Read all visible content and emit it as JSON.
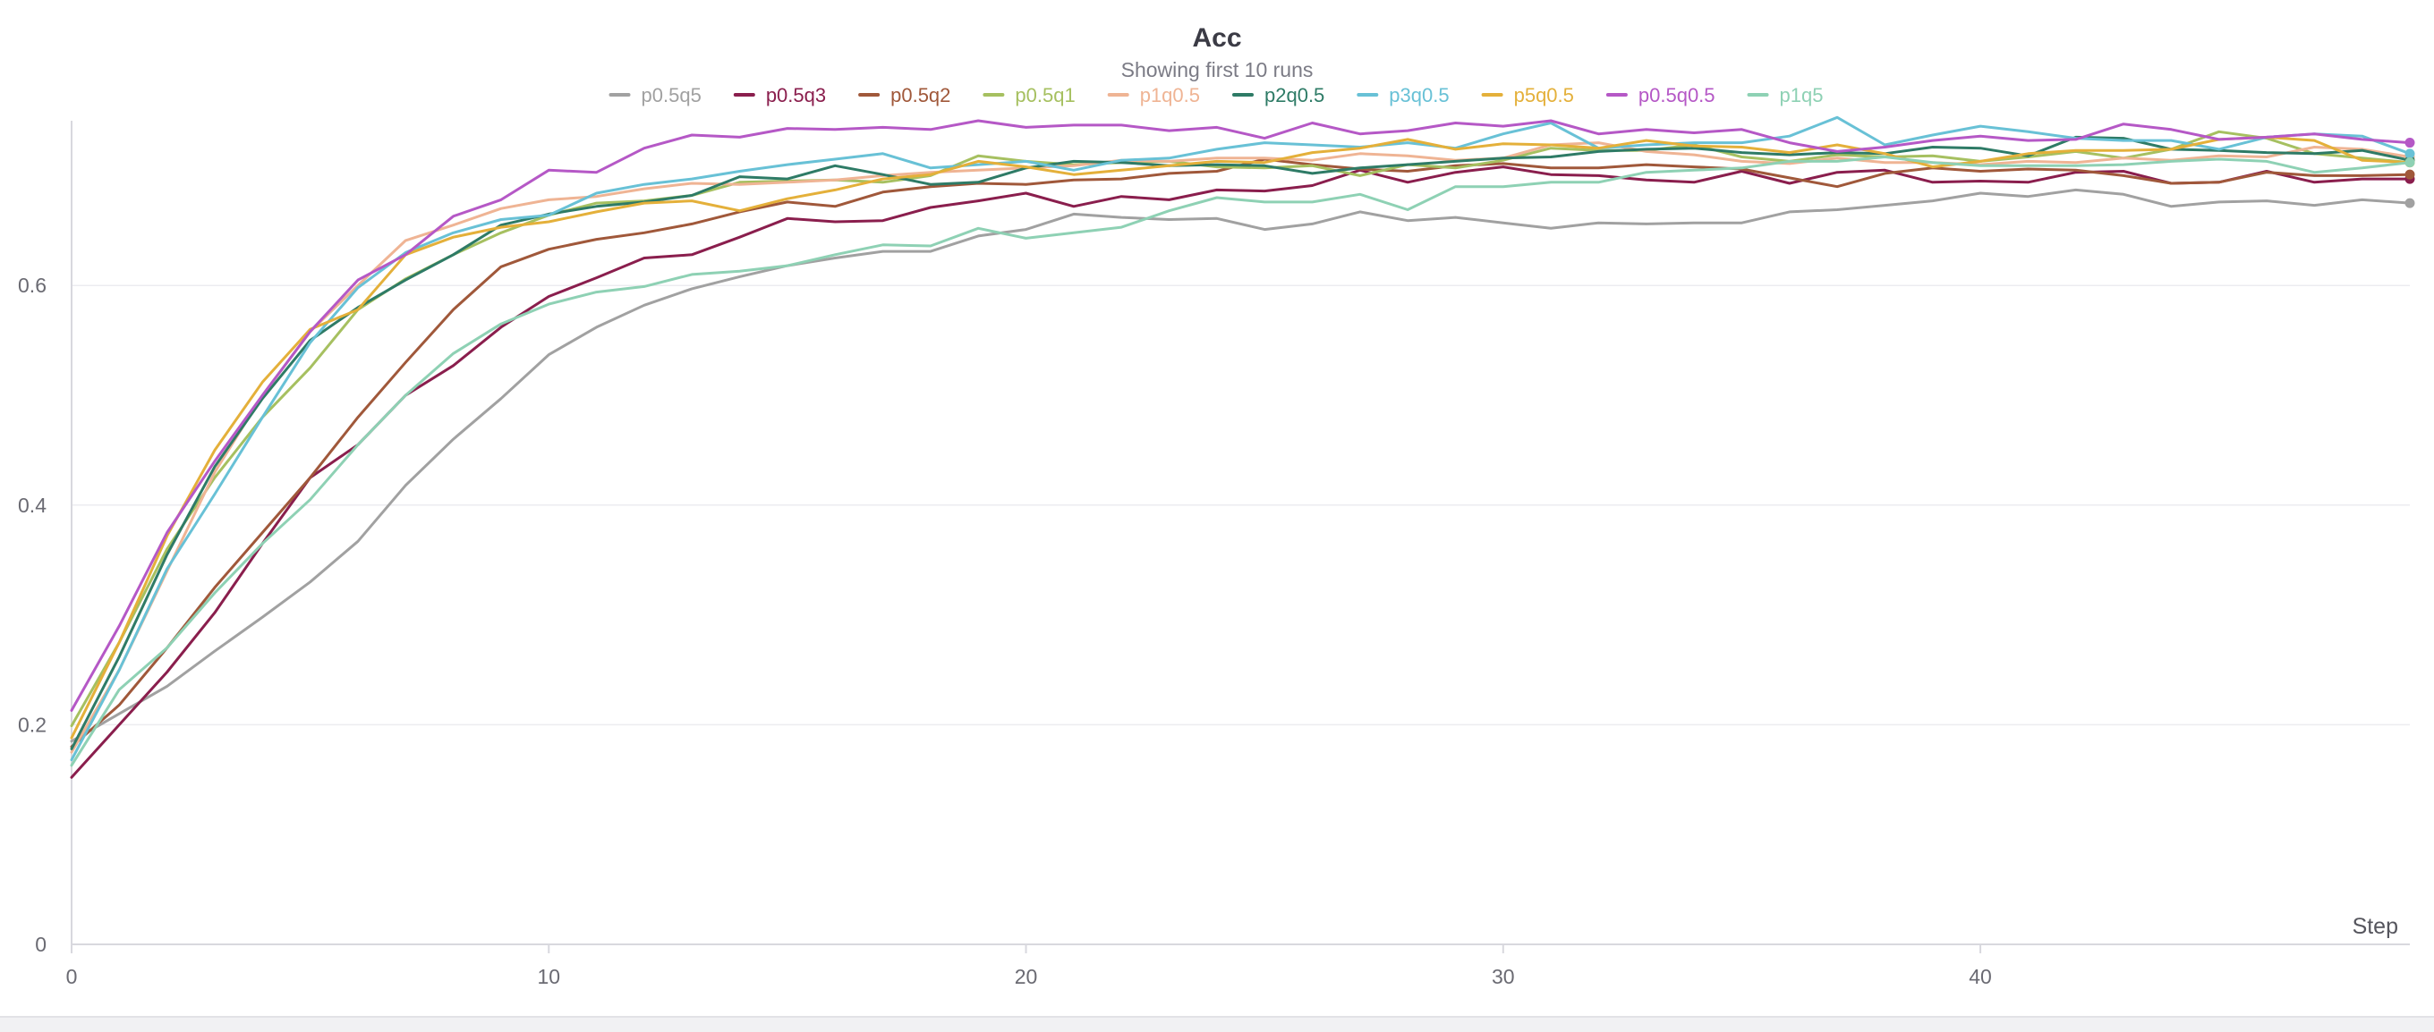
{
  "chart_data": {
    "type": "line",
    "title": "Acc",
    "subtitle": "Showing first 10 runs",
    "xlabel": "Step",
    "ylabel": "",
    "xlim": [
      0,
      49
    ],
    "ylim": [
      0,
      0.75
    ],
    "x_ticks": [
      0,
      10,
      20,
      30,
      40
    ],
    "y_ticks": [
      0,
      0.2,
      0.4,
      0.6
    ],
    "grid": "horizontal",
    "legend_position": "top-center",
    "x": [
      0,
      1,
      2,
      3,
      4,
      5,
      6,
      7,
      8,
      9,
      10,
      11,
      12,
      13,
      14,
      15,
      16,
      17,
      18,
      19,
      20,
      21,
      22,
      23,
      24,
      25,
      26,
      27,
      28,
      29,
      30,
      31,
      32,
      33,
      34,
      35,
      36,
      37,
      38,
      39,
      40,
      41,
      42,
      43,
      44,
      45,
      46,
      47,
      48,
      49
    ],
    "series": [
      {
        "name": "p0.5q5",
        "color": "#a1a1a1",
        "values": [
          0.185,
          0.21,
          0.235,
          0.267,
          0.298,
          0.33,
          0.367,
          0.418,
          0.46,
          0.497,
          0.537,
          0.562,
          0.582,
          0.597,
          0.608,
          0.618,
          0.625,
          0.631,
          0.631,
          0.645,
          0.651,
          0.665,
          0.662,
          0.66,
          0.661,
          0.651,
          0.656,
          0.667,
          0.659,
          0.662,
          0.657,
          0.652,
          0.657,
          0.656,
          0.657,
          0.657,
          0.667,
          0.669,
          0.673,
          0.677,
          0.684,
          0.681,
          0.687,
          0.683,
          0.672,
          0.676,
          0.677,
          0.673,
          0.678,
          0.675
        ]
      },
      {
        "name": "p0.5q3",
        "color": "#8a1e4d",
        "values": [
          0.152,
          0.2,
          0.248,
          0.302,
          0.365,
          0.425,
          0.455,
          0.5,
          0.527,
          0.562,
          0.59,
          0.607,
          0.625,
          0.628,
          0.644,
          0.661,
          0.658,
          0.659,
          0.671,
          0.677,
          0.684,
          0.672,
          0.681,
          0.678,
          0.687,
          0.686,
          0.691,
          0.705,
          0.694,
          0.703,
          0.708,
          0.701,
          0.7,
          0.696,
          0.694,
          0.704,
          0.693,
          0.703,
          0.705,
          0.694,
          0.695,
          0.694,
          0.703,
          0.704,
          0.693,
          0.694,
          0.704,
          0.694,
          0.697,
          0.697
        ]
      },
      {
        "name": "p0.5q2",
        "color": "#a0583a",
        "values": [
          0.18,
          0.218,
          0.27,
          0.325,
          0.375,
          0.425,
          0.48,
          0.53,
          0.578,
          0.617,
          0.633,
          0.642,
          0.648,
          0.656,
          0.667,
          0.676,
          0.672,
          0.685,
          0.69,
          0.693,
          0.692,
          0.696,
          0.697,
          0.702,
          0.704,
          0.715,
          0.71,
          0.706,
          0.704,
          0.709,
          0.711,
          0.707,
          0.707,
          0.71,
          0.708,
          0.706,
          0.698,
          0.69,
          0.702,
          0.707,
          0.704,
          0.706,
          0.705,
          0.7,
          0.693,
          0.694,
          0.703,
          0.7,
          0.7,
          0.701
        ]
      },
      {
        "name": "p0.5q1",
        "color": "#a6c060",
        "values": [
          0.199,
          0.275,
          0.36,
          0.425,
          0.48,
          0.525,
          0.578,
          0.606,
          0.628,
          0.648,
          0.664,
          0.675,
          0.677,
          0.682,
          0.694,
          0.695,
          0.696,
          0.694,
          0.7,
          0.718,
          0.713,
          0.71,
          0.712,
          0.713,
          0.708,
          0.707,
          0.709,
          0.7,
          0.71,
          0.707,
          0.714,
          0.725,
          0.723,
          0.723,
          0.728,
          0.717,
          0.713,
          0.719,
          0.717,
          0.718,
          0.713,
          0.717,
          0.722,
          0.716,
          0.724,
          0.74,
          0.734,
          0.72,
          0.716,
          0.712
        ]
      },
      {
        "name": "p1q0.5",
        "color": "#efb494",
        "values": [
          0.175,
          0.25,
          0.34,
          0.43,
          0.5,
          0.558,
          0.6,
          0.641,
          0.655,
          0.67,
          0.678,
          0.681,
          0.688,
          0.693,
          0.692,
          0.694,
          0.696,
          0.7,
          0.703,
          0.705,
          0.707,
          0.709,
          0.714,
          0.713,
          0.716,
          0.716,
          0.714,
          0.72,
          0.718,
          0.714,
          0.716,
          0.728,
          0.73,
          0.722,
          0.719,
          0.713,
          0.711,
          0.716,
          0.712,
          0.712,
          0.71,
          0.713,
          0.712,
          0.716,
          0.714,
          0.718,
          0.717,
          0.726,
          0.724,
          0.717
        ]
      },
      {
        "name": "p2q0.5",
        "color": "#2e7b66",
        "values": [
          0.178,
          0.262,
          0.355,
          0.435,
          0.497,
          0.55,
          0.58,
          0.605,
          0.628,
          0.655,
          0.665,
          0.672,
          0.676,
          0.682,
          0.699,
          0.697,
          0.709,
          0.701,
          0.692,
          0.694,
          0.707,
          0.713,
          0.712,
          0.709,
          0.71,
          0.709,
          0.702,
          0.707,
          0.71,
          0.713,
          0.716,
          0.717,
          0.722,
          0.724,
          0.725,
          0.721,
          0.719,
          0.721,
          0.72,
          0.726,
          0.725,
          0.718,
          0.735,
          0.734,
          0.724,
          0.723,
          0.721,
          0.72,
          0.723,
          0.714
        ]
      },
      {
        "name": "p3q0.5",
        "color": "#68c1d6",
        "values": [
          0.168,
          0.25,
          0.342,
          0.41,
          0.48,
          0.548,
          0.598,
          0.63,
          0.648,
          0.66,
          0.664,
          0.684,
          0.692,
          0.697,
          0.704,
          0.71,
          0.715,
          0.72,
          0.707,
          0.71,
          0.713,
          0.705,
          0.714,
          0.716,
          0.724,
          0.73,
          0.728,
          0.726,
          0.73,
          0.725,
          0.738,
          0.748,
          0.725,
          0.728,
          0.73,
          0.73,
          0.736,
          0.753,
          0.728,
          0.737,
          0.745,
          0.74,
          0.734,
          0.732,
          0.732,
          0.724,
          0.735,
          0.738,
          0.736,
          0.72
        ]
      },
      {
        "name": "p5q0.5",
        "color": "#e4b03a",
        "values": [
          0.188,
          0.275,
          0.372,
          0.45,
          0.512,
          0.56,
          0.578,
          0.628,
          0.644,
          0.653,
          0.658,
          0.667,
          0.675,
          0.677,
          0.668,
          0.679,
          0.687,
          0.697,
          0.701,
          0.713,
          0.708,
          0.701,
          0.705,
          0.709,
          0.713,
          0.712,
          0.721,
          0.725,
          0.733,
          0.724,
          0.729,
          0.728,
          0.725,
          0.732,
          0.727,
          0.726,
          0.721,
          0.728,
          0.72,
          0.708,
          0.713,
          0.72,
          0.723,
          0.723,
          0.724,
          0.733,
          0.735,
          0.732,
          0.714,
          0.712
        ]
      },
      {
        "name": "p0.5q0.5",
        "color": "#b558c6",
        "values": [
          0.213,
          0.29,
          0.375,
          0.44,
          0.5,
          0.558,
          0.605,
          0.628,
          0.663,
          0.678,
          0.705,
          0.703,
          0.725,
          0.737,
          0.735,
          0.743,
          0.742,
          0.744,
          0.742,
          0.75,
          0.744,
          0.746,
          0.746,
          0.741,
          0.744,
          0.734,
          0.748,
          0.738,
          0.741,
          0.748,
          0.745,
          0.75,
          0.738,
          0.742,
          0.739,
          0.742,
          0.73,
          0.722,
          0.726,
          0.732,
          0.736,
          0.732,
          0.733,
          0.747,
          0.742,
          0.733,
          0.735,
          0.738,
          0.733,
          0.73
        ]
      },
      {
        "name": "p1q5",
        "color": "#8ed1b4",
        "values": [
          0.163,
          0.232,
          0.27,
          0.32,
          0.365,
          0.405,
          0.455,
          0.5,
          0.538,
          0.565,
          0.583,
          0.594,
          0.599,
          0.61,
          0.613,
          0.618,
          0.628,
          0.637,
          0.636,
          0.652,
          0.643,
          0.648,
          0.653,
          0.668,
          0.68,
          0.676,
          0.676,
          0.683,
          0.669,
          0.69,
          0.69,
          0.694,
          0.694,
          0.703,
          0.705,
          0.707,
          0.713,
          0.713,
          0.717,
          0.712,
          0.709,
          0.709,
          0.709,
          0.71,
          0.713,
          0.715,
          0.713,
          0.703,
          0.707,
          0.712
        ]
      }
    ]
  }
}
